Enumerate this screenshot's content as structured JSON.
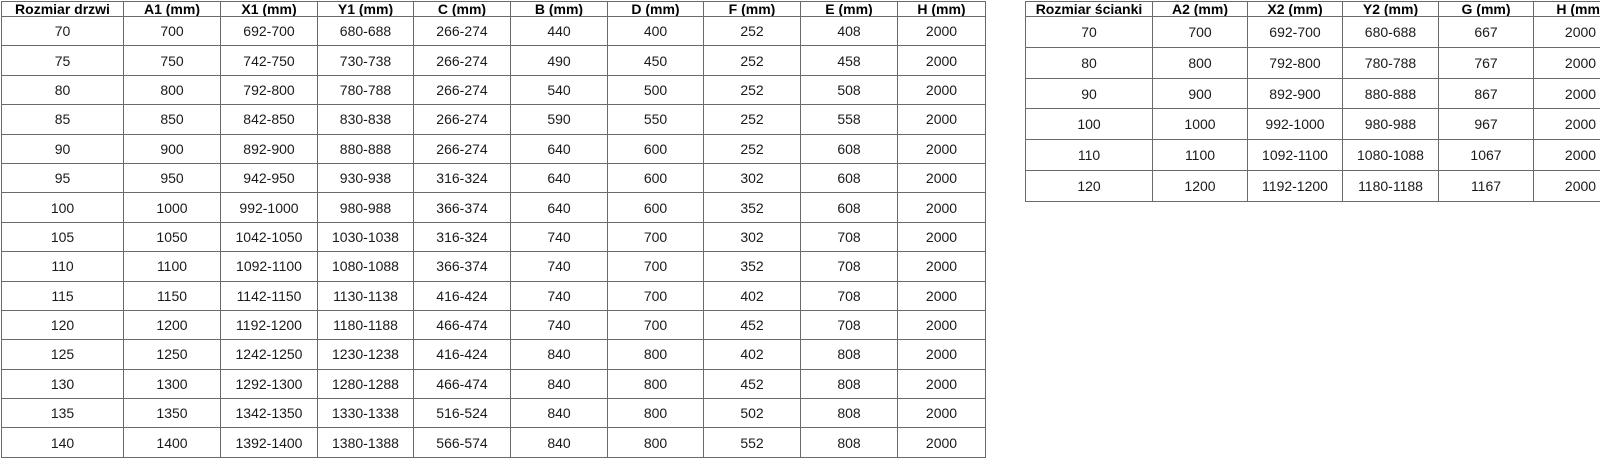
{
  "colors": {
    "background": "#ffffff",
    "border": "#6a6a6a",
    "text": "#1a1a1a"
  },
  "left_table": {
    "name": "door-size-table",
    "headers": [
      "Rozmiar drzwi",
      "A1 (mm)",
      "X1 (mm)",
      "Y1 (mm)",
      "C (mm)",
      "B (mm)",
      "D (mm)",
      "F (mm)",
      "E (mm)",
      "H (mm)"
    ],
    "rows": [
      [
        "70",
        "700",
        "692-700",
        "680-688",
        "266-274",
        "440",
        "400",
        "252",
        "408",
        "2000"
      ],
      [
        "75",
        "750",
        "742-750",
        "730-738",
        "266-274",
        "490",
        "450",
        "252",
        "458",
        "2000"
      ],
      [
        "80",
        "800",
        "792-800",
        "780-788",
        "266-274",
        "540",
        "500",
        "252",
        "508",
        "2000"
      ],
      [
        "85",
        "850",
        "842-850",
        "830-838",
        "266-274",
        "590",
        "550",
        "252",
        "558",
        "2000"
      ],
      [
        "90",
        "900",
        "892-900",
        "880-888",
        "266-274",
        "640",
        "600",
        "252",
        "608",
        "2000"
      ],
      [
        "95",
        "950",
        "942-950",
        "930-938",
        "316-324",
        "640",
        "600",
        "302",
        "608",
        "2000"
      ],
      [
        "100",
        "1000",
        "992-1000",
        "980-988",
        "366-374",
        "640",
        "600",
        "352",
        "608",
        "2000"
      ],
      [
        "105",
        "1050",
        "1042-1050",
        "1030-1038",
        "316-324",
        "740",
        "700",
        "302",
        "708",
        "2000"
      ],
      [
        "110",
        "1100",
        "1092-1100",
        "1080-1088",
        "366-374",
        "740",
        "700",
        "352",
        "708",
        "2000"
      ],
      [
        "115",
        "1150",
        "1142-1150",
        "1130-1138",
        "416-424",
        "740",
        "700",
        "402",
        "708",
        "2000"
      ],
      [
        "120",
        "1200",
        "1192-1200",
        "1180-1188",
        "466-474",
        "740",
        "700",
        "452",
        "708",
        "2000"
      ],
      [
        "125",
        "1250",
        "1242-1250",
        "1230-1238",
        "416-424",
        "840",
        "800",
        "402",
        "808",
        "2000"
      ],
      [
        "130",
        "1300",
        "1292-1300",
        "1280-1288",
        "466-474",
        "840",
        "800",
        "452",
        "808",
        "2000"
      ],
      [
        "135",
        "1350",
        "1342-1350",
        "1330-1338",
        "516-524",
        "840",
        "800",
        "502",
        "808",
        "2000"
      ],
      [
        "140",
        "1400",
        "1392-1400",
        "1380-1388",
        "566-574",
        "840",
        "800",
        "552",
        "808",
        "2000"
      ]
    ]
  },
  "right_table": {
    "name": "wall-size-table",
    "headers": [
      "Rozmiar ścianki",
      "A2 (mm)",
      "X2 (mm)",
      "Y2 (mm)",
      "G (mm)",
      "H (mm)"
    ],
    "rows": [
      [
        "70",
        "700",
        "692-700",
        "680-688",
        "667",
        "2000"
      ],
      [
        "80",
        "800",
        "792-800",
        "780-788",
        "767",
        "2000"
      ],
      [
        "90",
        "900",
        "892-900",
        "880-888",
        "867",
        "2000"
      ],
      [
        "100",
        "1000",
        "992-1000",
        "980-988",
        "967",
        "2000"
      ],
      [
        "110",
        "1100",
        "1092-1100",
        "1080-1088",
        "1067",
        "2000"
      ],
      [
        "120",
        "1200",
        "1192-1200",
        "1180-1188",
        "1167",
        "2000"
      ]
    ]
  }
}
